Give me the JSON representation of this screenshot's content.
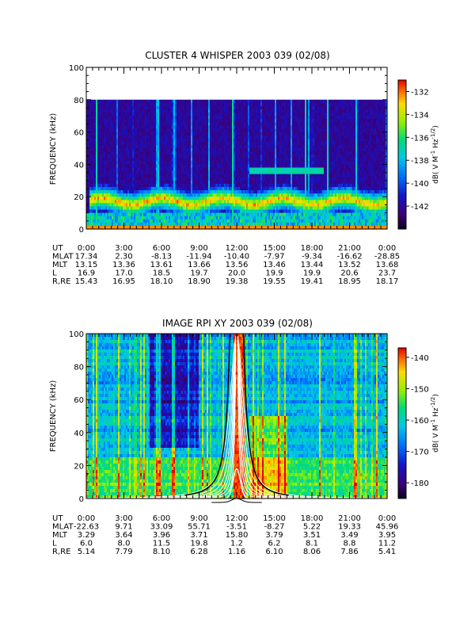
{
  "chart_data": [
    {
      "type": "heatmap",
      "title": "CLUSTER 4 WHISPER 2003 039 (02/08)",
      "xlabel": "",
      "ylabel": "FREQUENCY (kHz)",
      "xlim": [
        0,
        24
      ],
      "ylim": [
        0,
        100
      ],
      "data_ylim": [
        0,
        80
      ],
      "yticks": [
        "0",
        "20",
        "40",
        "60",
        "80",
        "100"
      ],
      "colorbar": {
        "label": "dB( V M⁻¹ Hz⁻¹ᐟ²)",
        "label_main": "dB( V M",
        "label_sup1": "-1",
        "label_mid": " Hz",
        "label_sup2": "-1/2",
        "label_end": ")",
        "range": [
          -144,
          -131
        ],
        "ticks": [
          "-132",
          "-134",
          "-136",
          "-138",
          "-140",
          "-142"
        ]
      },
      "background_level": 0.1,
      "bands": [
        {
          "name": "plasma line",
          "x": [
            0.3,
            24
          ],
          "y_center": 18,
          "level": 0.95
        },
        {
          "name": "diffuse",
          "x": [
            0,
            24
          ],
          "y_center": 6,
          "level": 0.45
        },
        {
          "name": "feature",
          "x": [
            13,
            19
          ],
          "y_center": 36,
          "level": 0.55
        }
      ],
      "ephemeris": {
        "labels": [
          "UT",
          "MLAT",
          "MLT",
          "L",
          "R,RE"
        ],
        "UT": [
          "0:00",
          "3:00",
          "6:00",
          "9:00",
          "12:00",
          "15:00",
          "18:00",
          "21:00",
          "0:00"
        ],
        "MLAT": [
          "17.34",
          "2.30",
          "-8.13",
          "-11.94",
          "-10.40",
          "-7.97",
          "-9.34",
          "-16.62",
          "-28.85"
        ],
        "MLT": [
          "13.15",
          "13.36",
          "13.61",
          "13.66",
          "13.56",
          "13.46",
          "13.44",
          "13.52",
          "13.68"
        ],
        "L": [
          "16.9",
          "17.0",
          "18.5",
          "19.7",
          "20.0",
          "19.9",
          "19.9",
          "20.6",
          "23.7"
        ],
        "R,RE": [
          "15.43",
          "16.95",
          "18.10",
          "18.90",
          "19.38",
          "19.55",
          "19.41",
          "18.95",
          "18.17"
        ]
      }
    },
    {
      "type": "heatmap",
      "title": "IMAGE RPI XY 2003 039 (02/08)",
      "xlabel": "",
      "ylabel": "FREQUENCY (kHz)",
      "xlim": [
        0,
        24
      ],
      "ylim": [
        0,
        100
      ],
      "data_ylim": [
        0,
        100
      ],
      "yticks": [
        "0",
        "20",
        "40",
        "60",
        "80",
        "100"
      ],
      "colorbar": {
        "label_main": "dB( V M",
        "label_sup1": "-1",
        "label_mid": " Hz",
        "label_sup2": "-1/2",
        "label_end": ")",
        "range": [
          -185,
          -137
        ],
        "ticks": [
          "-140",
          "-150",
          "-160",
          "-170",
          "-180"
        ]
      },
      "background_level": 0.35,
      "overlay_note_peak_ut": 12.0,
      "ephemeris": {
        "labels": [
          "UT",
          "MLAT",
          "MLT",
          "L",
          "R,RE"
        ],
        "UT": [
          "0:00",
          "3:00",
          "6:00",
          "9:00",
          "12:00",
          "15:00",
          "18:00",
          "21:00",
          "0:00"
        ],
        "MLAT": [
          "-22.63",
          "9.71",
          "33.09",
          "55.71",
          "-3.51",
          "-8.27",
          "5.22",
          "19.33",
          "45.96"
        ],
        "MLT": [
          "3.29",
          "3.64",
          "3.96",
          "3.71",
          "15.80",
          "3.79",
          "3.51",
          "3.49",
          "3.95"
        ],
        "L": [
          "6.0",
          "8.0",
          "11.5",
          "19.8",
          "1.2",
          "6.2",
          "8.1",
          "8.8",
          "11.2"
        ],
        "R,RE": [
          "5.14",
          "7.79",
          "8.10",
          "6.28",
          "1.16",
          "6.10",
          "8.06",
          "7.86",
          "5.41"
        ]
      }
    }
  ]
}
